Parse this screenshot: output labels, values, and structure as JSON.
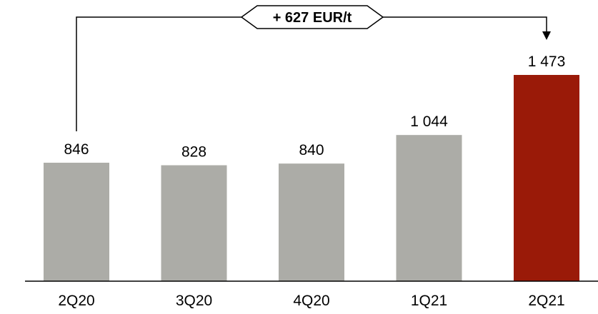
{
  "chart_data": {
    "type": "bar",
    "categories": [
      "2Q20",
      "3Q20",
      "4Q20",
      "1Q21",
      "2Q21"
    ],
    "values": [
      846,
      828,
      840,
      1044,
      1473
    ],
    "value_labels": [
      "846",
      "828",
      "840",
      "1 044",
      "1 473"
    ],
    "bar_colors": [
      "#acaca7",
      "#acaca7",
      "#acaca7",
      "#acaca7",
      "#9a1a08"
    ],
    "axis_color": "#000000",
    "annotation": {
      "text": "+ 627 EUR/t",
      "from_category": "2Q20",
      "to_category": "2Q21"
    },
    "ylim": [
      0,
      1700
    ]
  }
}
